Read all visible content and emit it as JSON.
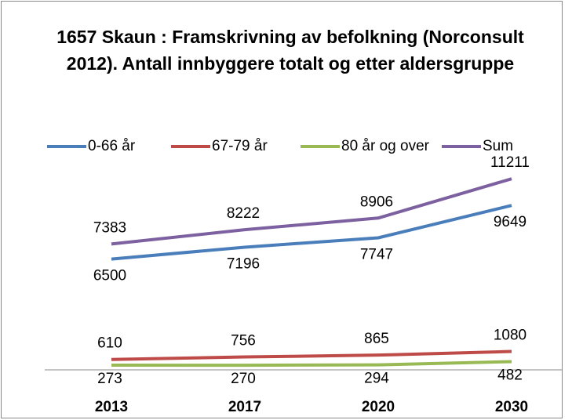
{
  "chart_data": {
    "type": "line",
    "title": "1657 Skaun : Framskrivning av befolkning (Norconsult 2012). Antall innbyggere totalt og etter aldersgruppe",
    "categories": [
      "2013",
      "2017",
      "2020",
      "2030"
    ],
    "series": [
      {
        "name": "0-66 år",
        "color": "#4a7ebb",
        "values": [
          6500,
          7196,
          7747,
          9649
        ]
      },
      {
        "name": "67-79 år",
        "color": "#be4b48",
        "values": [
          610,
          756,
          865,
          1080
        ]
      },
      {
        "name": "80 år og over",
        "color": "#98b954",
        "values": [
          273,
          270,
          294,
          482
        ]
      },
      {
        "name": "Sum",
        "color": "#7d60a0",
        "values": [
          7383,
          8222,
          8906,
          11211
        ]
      }
    ],
    "ylim": [
      0,
      12000
    ],
    "legend": "top"
  }
}
